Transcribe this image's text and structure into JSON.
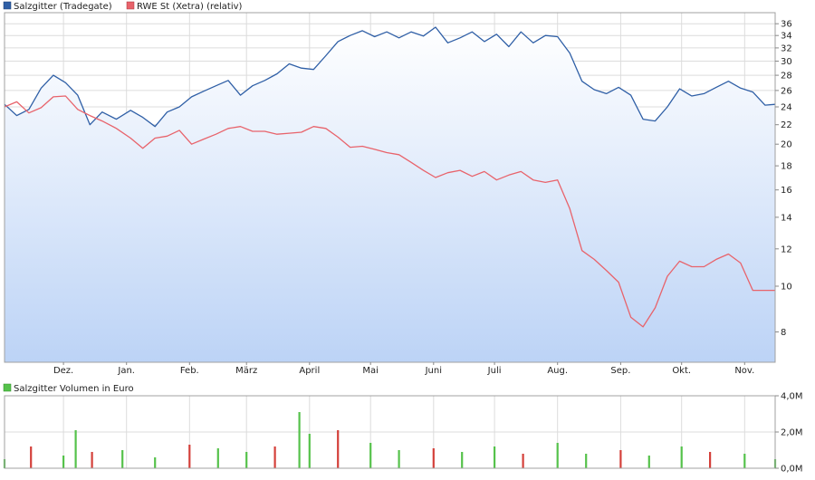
{
  "chart_data": [
    {
      "type": "line",
      "title": "",
      "legend_placement": "top-left",
      "grid": true,
      "scale": "log",
      "ylim": [
        6.9,
        38
      ],
      "y_ticks": [
        8,
        10,
        12,
        14,
        16,
        18,
        20,
        22,
        24,
        26,
        28,
        30,
        32,
        34,
        36
      ],
      "x_ticks": [
        {
          "label": "Dez.",
          "x": "2017-12-01"
        },
        {
          "label": "Jan.",
          "x": "2018-01-01"
        },
        {
          "label": "Feb.",
          "x": "2018-02-01"
        },
        {
          "label": "März",
          "x": "2018-03-01"
        },
        {
          "label": "April",
          "x": "2018-04-01"
        },
        {
          "label": "Mai",
          "x": "2018-05-01"
        },
        {
          "label": "Juni",
          "x": "2018-06-01"
        },
        {
          "label": "Juli",
          "x": "2018-07-01"
        },
        {
          "label": "Aug.",
          "x": "2018-08-01"
        },
        {
          "label": "Sep.",
          "x": "2018-09-01"
        },
        {
          "label": "Okt.",
          "x": "2018-10-01"
        },
        {
          "label": "Nov.",
          "x": "2018-11-01"
        }
      ],
      "xlim": [
        "2017-11-02",
        "2018-11-16"
      ],
      "series": [
        {
          "name": "Salzgitter (Tradegate)",
          "color": "#2f5fa6",
          "area_fill": true,
          "x": [
            "2017-11-02",
            "2017-11-08",
            "2017-11-14",
            "2017-11-20",
            "2017-11-26",
            "2017-12-02",
            "2017-12-08",
            "2017-12-14",
            "2017-12-20",
            "2017-12-27",
            "2018-01-03",
            "2018-01-09",
            "2018-01-15",
            "2018-01-21",
            "2018-01-27",
            "2018-02-02",
            "2018-02-08",
            "2018-02-14",
            "2018-02-20",
            "2018-02-26",
            "2018-03-04",
            "2018-03-10",
            "2018-03-16",
            "2018-03-22",
            "2018-03-28",
            "2018-04-03",
            "2018-04-09",
            "2018-04-15",
            "2018-04-21",
            "2018-04-27",
            "2018-05-03",
            "2018-05-09",
            "2018-05-15",
            "2018-05-21",
            "2018-05-27",
            "2018-06-02",
            "2018-06-08",
            "2018-06-14",
            "2018-06-20",
            "2018-06-26",
            "2018-07-02",
            "2018-07-08",
            "2018-07-14",
            "2018-07-20",
            "2018-07-26",
            "2018-08-01",
            "2018-08-07",
            "2018-08-13",
            "2018-08-19",
            "2018-08-25",
            "2018-08-31",
            "2018-09-06",
            "2018-09-12",
            "2018-09-18",
            "2018-09-24",
            "2018-09-30",
            "2018-10-06",
            "2018-10-12",
            "2018-10-18",
            "2018-10-24",
            "2018-10-30",
            "2018-11-05",
            "2018-11-11",
            "2018-11-16"
          ],
          "y": [
            24.3,
            23.0,
            23.7,
            26.3,
            28.0,
            27.0,
            25.4,
            22.0,
            23.4,
            22.6,
            23.6,
            22.8,
            21.8,
            23.4,
            24.0,
            25.2,
            25.9,
            26.6,
            27.3,
            25.4,
            26.6,
            27.3,
            28.2,
            29.6,
            29.0,
            28.8,
            30.8,
            33.0,
            34.0,
            34.8,
            33.8,
            34.6,
            33.6,
            34.6,
            33.9,
            35.4,
            32.8,
            33.6,
            34.6,
            33.0,
            34.2,
            32.2,
            34.6,
            32.8,
            34.0,
            33.8,
            31.2,
            27.2,
            26.1,
            25.6,
            26.4,
            25.4,
            22.6,
            22.4,
            24.0,
            26.2,
            25.3,
            25.6,
            26.4,
            27.2,
            26.3,
            25.8,
            24.2,
            24.3
          ]
        },
        {
          "name": "RWE St (Xetra) (relativ)",
          "color": "#e8636b",
          "area_fill": false,
          "x": [
            "2017-11-02",
            "2017-11-08",
            "2017-11-14",
            "2017-11-20",
            "2017-11-26",
            "2017-12-02",
            "2017-12-08",
            "2017-12-14",
            "2017-12-20",
            "2017-12-27",
            "2018-01-03",
            "2018-01-09",
            "2018-01-15",
            "2018-01-21",
            "2018-01-27",
            "2018-02-02",
            "2018-02-08",
            "2018-02-14",
            "2018-02-20",
            "2018-02-26",
            "2018-03-04",
            "2018-03-10",
            "2018-03-16",
            "2018-03-22",
            "2018-03-28",
            "2018-04-03",
            "2018-04-09",
            "2018-04-15",
            "2018-04-21",
            "2018-04-27",
            "2018-05-03",
            "2018-05-09",
            "2018-05-15",
            "2018-05-21",
            "2018-05-27",
            "2018-06-02",
            "2018-06-08",
            "2018-06-14",
            "2018-06-20",
            "2018-06-26",
            "2018-07-02",
            "2018-07-08",
            "2018-07-14",
            "2018-07-20",
            "2018-07-26",
            "2018-08-01",
            "2018-08-07",
            "2018-08-13",
            "2018-08-19",
            "2018-08-25",
            "2018-08-31",
            "2018-09-06",
            "2018-09-12",
            "2018-09-18",
            "2018-09-24",
            "2018-09-30",
            "2018-10-06",
            "2018-10-12",
            "2018-10-18",
            "2018-10-24",
            "2018-10-30",
            "2018-11-05",
            "2018-11-11",
            "2018-11-16"
          ],
          "y": [
            24.0,
            24.6,
            23.3,
            23.9,
            25.2,
            25.3,
            23.7,
            23.0,
            22.4,
            21.6,
            20.6,
            19.6,
            20.6,
            20.8,
            21.4,
            20.0,
            20.5,
            21.0,
            21.6,
            21.8,
            21.3,
            21.3,
            21.0,
            21.1,
            21.2,
            21.8,
            21.6,
            20.7,
            19.7,
            19.8,
            19.5,
            19.2,
            19.0,
            18.3,
            17.6,
            17.0,
            17.4,
            17.6,
            17.1,
            17.5,
            16.8,
            17.2,
            17.5,
            16.8,
            16.6,
            16.8,
            14.6,
            11.9,
            11.4,
            10.8,
            10.2,
            8.6,
            8.2,
            9.0,
            10.5,
            11.3,
            11.0,
            11.0,
            11.4,
            11.7,
            11.2,
            9.8,
            9.8,
            9.8
          ]
        }
      ]
    },
    {
      "type": "bar",
      "title": "",
      "legend_placement": "top-left",
      "grid": true,
      "ylim": [
        0,
        4.0
      ],
      "y_tick_values": [
        0,
        2,
        4
      ],
      "y_tick_labels": [
        "0,0M",
        "2,0M",
        "4,0M"
      ],
      "xlim": [
        "2017-11-02",
        "2018-11-16"
      ],
      "series": [
        {
          "name": "Salzgitter Volumen in Euro",
          "color_up": "#55c24b",
          "color_down": "#d4403a",
          "note": "",
          "x": [
            "2017-11-02",
            "2017-11-15",
            "2017-12-01",
            "2017-12-07",
            "2017-12-15",
            "2017-12-30",
            "2018-01-15",
            "2018-02-01",
            "2018-02-15",
            "2018-03-01",
            "2018-03-15",
            "2018-03-27",
            "2018-04-01",
            "2018-04-15",
            "2018-05-01",
            "2018-05-15",
            "2018-06-01",
            "2018-06-15",
            "2018-07-01",
            "2018-07-15",
            "2018-08-01",
            "2018-08-15",
            "2018-09-01",
            "2018-09-15",
            "2018-10-01",
            "2018-10-15",
            "2018-11-01",
            "2018-11-16"
          ],
          "values": [
            0.5,
            1.2,
            0.7,
            2.1,
            0.9,
            1.0,
            0.6,
            1.3,
            1.1,
            0.9,
            1.2,
            3.1,
            1.9,
            2.1,
            1.4,
            1.0,
            1.1,
            0.9,
            1.2,
            0.8,
            1.4,
            0.8,
            1.0,
            0.7,
            1.2,
            0.9,
            0.8,
            0.5
          ]
        }
      ]
    }
  ]
}
